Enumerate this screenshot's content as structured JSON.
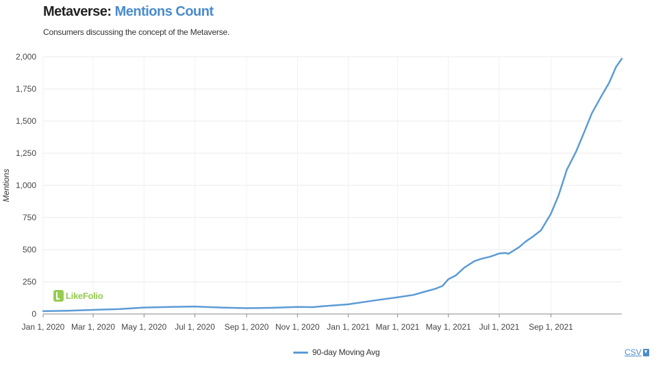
{
  "header": {
    "title_prefix": "Metaverse: ",
    "title_accent": "Mentions Count",
    "subtitle": "Consumers discussing the concept of the Metaverse."
  },
  "watermark": {
    "text": "LikeFolio"
  },
  "legend": {
    "label": "90-day Moving Avg"
  },
  "export": {
    "label": "CSV"
  },
  "colors": {
    "series": "#5b9bd5",
    "accent": "#4a8ccc",
    "logo": "#8cc63f"
  },
  "chart_data": {
    "type": "line",
    "title": "Metaverse: Mentions Count",
    "subtitle": "Consumers discussing the concept of the Metaverse.",
    "xlabel": "",
    "ylabel": "Mentions",
    "ylim": [
      0,
      2000
    ],
    "xlim": [
      "2020-01-01",
      "2021-11-25"
    ],
    "y_ticks": [
      0,
      250,
      500,
      750,
      1000,
      1250,
      1500,
      1750,
      2000
    ],
    "y_tick_labels": [
      "0",
      "250",
      "500",
      "750",
      "1,000",
      "1,250",
      "1,500",
      "1,750",
      "2,000"
    ],
    "x_ticks": [
      "2020-01-01",
      "2020-03-01",
      "2020-05-01",
      "2020-07-01",
      "2020-09-01",
      "2020-11-01",
      "2021-01-01",
      "2021-03-01",
      "2021-05-01",
      "2021-07-01",
      "2021-09-01"
    ],
    "x_tick_labels": [
      "Jan 1, 2020",
      "Mar 1, 2020",
      "May 1, 2020",
      "Jul 1, 2020",
      "Sep 1, 2020",
      "Nov 1, 2020",
      "Jan 1, 2021",
      "Mar 1, 2021",
      "May 1, 2021",
      "Jul 1, 2021",
      "Sep 1, 2021"
    ],
    "grid": true,
    "legend_position": "bottom",
    "series": [
      {
        "name": "90-day Moving Avg",
        "points": [
          [
            "2020-01-01",
            22
          ],
          [
            "2020-02-01",
            25
          ],
          [
            "2020-03-01",
            32
          ],
          [
            "2020-04-01",
            38
          ],
          [
            "2020-05-01",
            50
          ],
          [
            "2020-06-01",
            55
          ],
          [
            "2020-07-01",
            58
          ],
          [
            "2020-08-01",
            50
          ],
          [
            "2020-09-01",
            45
          ],
          [
            "2020-10-01",
            48
          ],
          [
            "2020-11-01",
            55
          ],
          [
            "2020-11-20",
            53
          ],
          [
            "2020-12-01",
            60
          ],
          [
            "2021-01-01",
            75
          ],
          [
            "2021-02-01",
            105
          ],
          [
            "2021-03-01",
            130
          ],
          [
            "2021-03-20",
            148
          ],
          [
            "2021-04-01",
            170
          ],
          [
            "2021-04-15",
            195
          ],
          [
            "2021-04-24",
            218
          ],
          [
            "2021-05-01",
            270
          ],
          [
            "2021-05-10",
            300
          ],
          [
            "2021-05-20",
            360
          ],
          [
            "2021-06-01",
            410
          ],
          [
            "2021-06-10",
            430
          ],
          [
            "2021-06-20",
            445
          ],
          [
            "2021-07-01",
            470
          ],
          [
            "2021-07-08",
            475
          ],
          [
            "2021-07-12",
            468
          ],
          [
            "2021-07-15",
            480
          ],
          [
            "2021-07-25",
            520
          ],
          [
            "2021-08-01",
            560
          ],
          [
            "2021-08-10",
            600
          ],
          [
            "2021-08-20",
            650
          ],
          [
            "2021-09-01",
            780
          ],
          [
            "2021-09-10",
            920
          ],
          [
            "2021-09-15",
            1020
          ],
          [
            "2021-09-20",
            1120
          ],
          [
            "2021-10-01",
            1260
          ],
          [
            "2021-10-10",
            1400
          ],
          [
            "2021-10-20",
            1560
          ],
          [
            "2021-11-01",
            1700
          ],
          [
            "2021-11-10",
            1800
          ],
          [
            "2021-11-18",
            1920
          ],
          [
            "2021-11-25",
            1985
          ]
        ]
      }
    ]
  }
}
